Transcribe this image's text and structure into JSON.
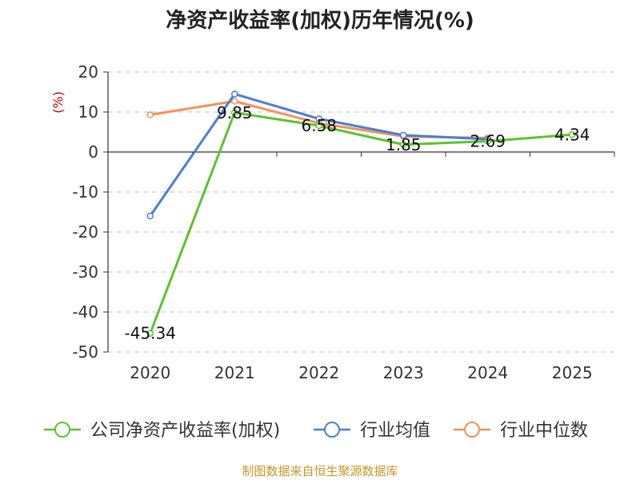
{
  "chart_data": {
    "type": "line",
    "title": "净资产收益率(加权)历年情况(%)",
    "ylabel": "(%)",
    "xlabel": "",
    "categories": [
      "2020",
      "2021",
      "2022",
      "2023",
      "2024",
      "2025"
    ],
    "ylim": [
      -50,
      20
    ],
    "yticks": [
      20,
      10,
      0,
      -10,
      -20,
      -30,
      -40,
      -50
    ],
    "grid": true,
    "legend_position": "bottom",
    "series": [
      {
        "name": "公司净资产收益率(加权)",
        "color": "#5ec22d",
        "values": [
          -45.34,
          9.85,
          6.58,
          1.85,
          2.69,
          4.34
        ],
        "labels": [
          "-45.34",
          "9.85",
          "6.58",
          "1.85",
          "2.69",
          "4.34"
        ]
      },
      {
        "name": "行业均值",
        "color": "#4a7fd4",
        "values": [
          -16.0,
          14.5,
          8.3,
          4.2,
          3.2,
          null
        ]
      },
      {
        "name": "行业中位数",
        "color": "#f5915a",
        "values": [
          9.3,
          12.7,
          7.2,
          3.9,
          3.5,
          null
        ]
      }
    ],
    "source": "制图数据来自恒生聚源数据库"
  }
}
